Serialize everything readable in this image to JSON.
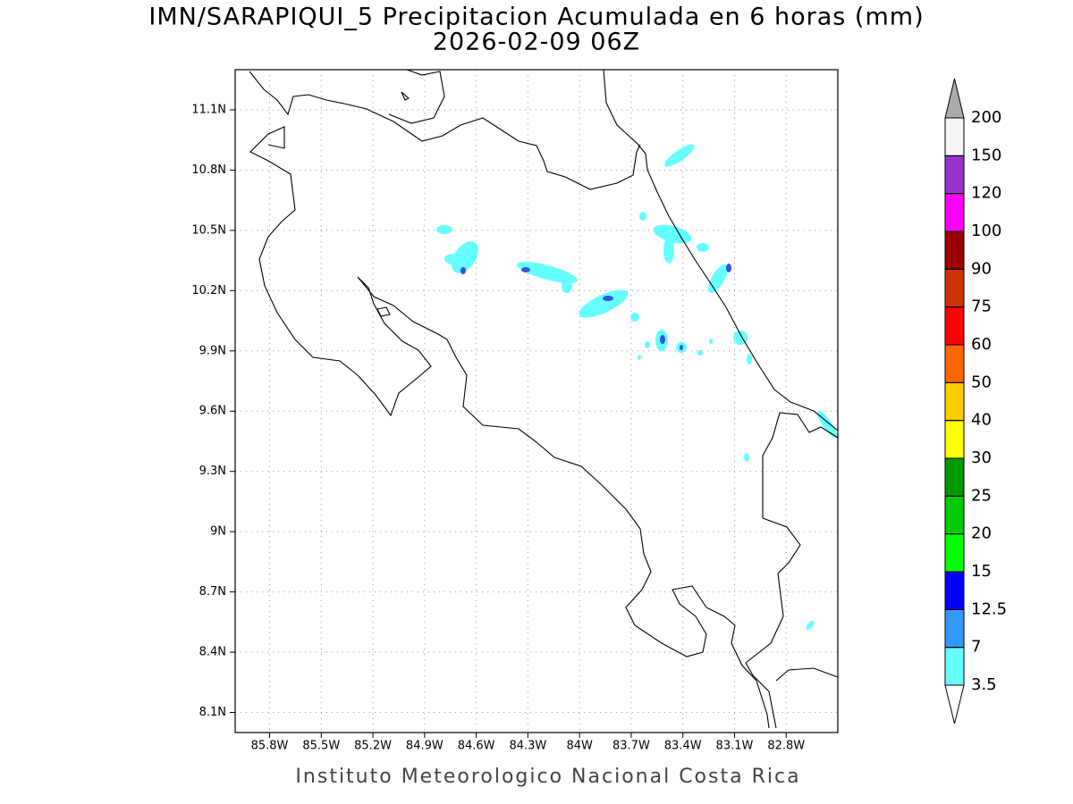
{
  "map": {
    "title": "IMN/SARAPIQUI_5 Precipitacion Acumulada en 6 horas (mm)",
    "subtitle": "2026-02-09 06Z",
    "footer": "Instituto Meteorologico Nacional Costa Rica",
    "xlim": [
      -86.0,
      -82.5
    ],
    "ylim": [
      8.0,
      11.3
    ],
    "xticks": [
      {
        "value": -85.8,
        "label": "85.8W"
      },
      {
        "value": -85.5,
        "label": "85.5W"
      },
      {
        "value": -85.2,
        "label": "85.2W"
      },
      {
        "value": -84.9,
        "label": "84.9W"
      },
      {
        "value": -84.6,
        "label": "84.6W"
      },
      {
        "value": -84.3,
        "label": "84.3W"
      },
      {
        "value": -84.0,
        "label": "84W"
      },
      {
        "value": -83.7,
        "label": "83.7W"
      },
      {
        "value": -83.4,
        "label": "83.4W"
      },
      {
        "value": -83.1,
        "label": "83.1W"
      },
      {
        "value": -82.8,
        "label": "82.8W"
      }
    ],
    "yticks": [
      {
        "value": 11.1,
        "label": "11.1N"
      },
      {
        "value": 10.8,
        "label": "10.8N"
      },
      {
        "value": 10.5,
        "label": "10.5N"
      },
      {
        "value": 10.2,
        "label": "10.2N"
      },
      {
        "value": 9.9,
        "label": "9.9N"
      },
      {
        "value": 9.6,
        "label": "9.6N"
      },
      {
        "value": 9.3,
        "label": "9.3N"
      },
      {
        "value": 9.0,
        "label": "9N"
      },
      {
        "value": 8.7,
        "label": "8.7N"
      },
      {
        "value": 8.4,
        "label": "8.4N"
      },
      {
        "value": 8.1,
        "label": "8.1N"
      }
    ],
    "grid": true,
    "colorbar": {
      "levels": [
        3.5,
        7,
        12.5,
        15,
        20,
        25,
        30,
        40,
        50,
        60,
        75,
        90,
        100,
        120,
        150,
        200
      ],
      "colors": [
        "#ffffff",
        "#66ffff",
        "#3399ff",
        "#0000ff",
        "#00ff00",
        "#00cc00",
        "#009900",
        "#ffff00",
        "#ffcc00",
        "#ff6600",
        "#ff0000",
        "#cc3300",
        "#990000",
        "#ff00ff",
        "#9933cc",
        "#f5f5f5",
        "#aaaaaa"
      ]
    }
  }
}
